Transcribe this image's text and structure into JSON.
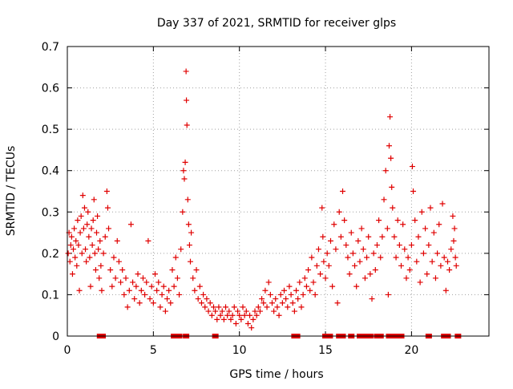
{
  "chart_data": {
    "type": "scatter",
    "title": "Day 337 of 2021, SRMTID for receiver glps",
    "xlabel": "GPS time / hours",
    "ylabel": "SRMTID / TECUs",
    "xlim": [
      0,
      24.5
    ],
    "ylim": [
      0,
      0.7
    ],
    "xticks": [
      0,
      5,
      10,
      15,
      20
    ],
    "xtick_labels": [
      "0",
      "5",
      "10",
      "15",
      "20"
    ],
    "yticks": [
      0,
      0.1,
      0.2,
      0.3,
      0.4,
      0.5,
      0.6,
      0.7
    ],
    "ytick_labels": [
      "0",
      "0.1",
      "0.2",
      "0.3",
      "0.4",
      "0.5",
      "0.6",
      "0.7"
    ],
    "grid": true,
    "marker": "+",
    "color": "#e00000",
    "series": [
      {
        "name": "SRMTID",
        "points": [
          [
            0.05,
            0.2
          ],
          [
            0.1,
            0.25
          ],
          [
            0.15,
            0.18
          ],
          [
            0.2,
            0.22
          ],
          [
            0.25,
            0.24
          ],
          [
            0.3,
            0.15
          ],
          [
            0.35,
            0.21
          ],
          [
            0.4,
            0.26
          ],
          [
            0.45,
            0.19
          ],
          [
            0.5,
            0.23
          ],
          [
            0.55,
            0.17
          ],
          [
            0.6,
            0.28
          ],
          [
            0.65,
            0.22
          ],
          [
            0.7,
            0.11
          ],
          [
            0.75,
            0.25
          ],
          [
            0.8,
            0.29
          ],
          [
            0.85,
            0.2
          ],
          [
            0.9,
            0.34
          ],
          [
            0.95,
            0.26
          ],
          [
            1.0,
            0.31
          ],
          [
            1.05,
            0.21
          ],
          [
            1.1,
            0.18
          ],
          [
            1.15,
            0.27
          ],
          [
            1.2,
            0.3
          ],
          [
            1.25,
            0.24
          ],
          [
            1.3,
            0.19
          ],
          [
            1.35,
            0.12
          ],
          [
            1.4,
            0.26
          ],
          [
            1.45,
            0.22
          ],
          [
            1.5,
            0.28
          ],
          [
            1.55,
            0.33
          ],
          [
            1.6,
            0.2
          ],
          [
            1.65,
            0.16
          ],
          [
            1.7,
            0.25
          ],
          [
            1.75,
            0.29
          ],
          [
            1.8,
            0.21
          ],
          [
            1.85,
            0.14
          ],
          [
            1.9,
            0.23
          ],
          [
            1.95,
            0.17
          ],
          [
            2.0,
            0.11
          ],
          [
            2.1,
            0.2
          ],
          [
            2.2,
            0.24
          ],
          [
            2.3,
            0.35
          ],
          [
            2.35,
            0.31
          ],
          [
            2.4,
            0.26
          ],
          [
            2.5,
            0.16
          ],
          [
            2.6,
            0.12
          ],
          [
            2.7,
            0.19
          ],
          [
            2.8,
            0.14
          ],
          [
            2.9,
            0.23
          ],
          [
            3.0,
            0.18
          ],
          [
            3.1,
            0.13
          ],
          [
            3.2,
            0.16
          ],
          [
            3.3,
            0.1
          ],
          [
            3.4,
            0.14
          ],
          [
            3.5,
            0.07
          ],
          [
            3.6,
            0.11
          ],
          [
            3.7,
            0.27
          ],
          [
            3.8,
            0.13
          ],
          [
            3.9,
            0.09
          ],
          [
            4.0,
            0.12
          ],
          [
            4.1,
            0.15
          ],
          [
            4.2,
            0.08
          ],
          [
            4.3,
            0.11
          ],
          [
            4.4,
            0.14
          ],
          [
            4.5,
            0.1
          ],
          [
            4.6,
            0.13
          ],
          [
            4.7,
            0.23
          ],
          [
            4.8,
            0.09
          ],
          [
            4.9,
            0.12
          ],
          [
            5.0,
            0.08
          ],
          [
            5.1,
            0.15
          ],
          [
            5.2,
            0.11
          ],
          [
            5.3,
            0.13
          ],
          [
            5.4,
            0.07
          ],
          [
            5.5,
            0.1
          ],
          [
            5.6,
            0.12
          ],
          [
            5.7,
            0.06
          ],
          [
            5.8,
            0.09
          ],
          [
            5.9,
            0.11
          ],
          [
            6.0,
            0.08
          ],
          [
            6.1,
            0.16
          ],
          [
            6.2,
            0.12
          ],
          [
            6.3,
            0.19
          ],
          [
            6.4,
            0.14
          ],
          [
            6.5,
            0.1
          ],
          [
            6.6,
            0.21
          ],
          [
            6.7,
            0.3
          ],
          [
            6.75,
            0.4
          ],
          [
            6.8,
            0.38
          ],
          [
            6.85,
            0.42
          ],
          [
            6.9,
            0.64
          ],
          [
            6.92,
            0.57
          ],
          [
            6.95,
            0.51
          ],
          [
            7.0,
            0.33
          ],
          [
            7.05,
            0.27
          ],
          [
            7.1,
            0.22
          ],
          [
            7.15,
            0.18
          ],
          [
            7.2,
            0.25
          ],
          [
            7.3,
            0.14
          ],
          [
            7.4,
            0.11
          ],
          [
            7.5,
            0.16
          ],
          [
            7.6,
            0.09
          ],
          [
            7.7,
            0.12
          ],
          [
            7.8,
            0.08
          ],
          [
            7.9,
            0.1
          ],
          [
            8.0,
            0.07
          ],
          [
            8.1,
            0.09
          ],
          [
            8.2,
            0.06
          ],
          [
            8.3,
            0.08
          ],
          [
            8.4,
            0.05
          ],
          [
            8.5,
            0.07
          ],
          [
            8.6,
            0.06
          ],
          [
            8.7,
            0.04
          ],
          [
            8.8,
            0.07
          ],
          [
            8.9,
            0.05
          ],
          [
            9.0,
            0.06
          ],
          [
            9.1,
            0.04
          ],
          [
            9.2,
            0.07
          ],
          [
            9.3,
            0.05
          ],
          [
            9.4,
            0.06
          ],
          [
            9.5,
            0.04
          ],
          [
            9.6,
            0.05
          ],
          [
            9.7,
            0.07
          ],
          [
            9.8,
            0.03
          ],
          [
            9.9,
            0.06
          ],
          [
            10.0,
            0.05
          ],
          [
            10.1,
            0.04
          ],
          [
            10.2,
            0.07
          ],
          [
            10.3,
            0.05
          ],
          [
            10.4,
            0.06
          ],
          [
            10.5,
            0.03
          ],
          [
            10.6,
            0.05
          ],
          [
            10.7,
            0.02
          ],
          [
            10.8,
            0.04
          ],
          [
            10.9,
            0.06
          ],
          [
            11.0,
            0.05
          ],
          [
            11.1,
            0.07
          ],
          [
            11.2,
            0.06
          ],
          [
            11.3,
            0.09
          ],
          [
            11.4,
            0.08
          ],
          [
            11.5,
            0.11
          ],
          [
            11.6,
            0.07
          ],
          [
            11.7,
            0.13
          ],
          [
            11.8,
            0.1
          ],
          [
            11.9,
            0.08
          ],
          [
            12.0,
            0.06
          ],
          [
            12.1,
            0.09
          ],
          [
            12.2,
            0.07
          ],
          [
            12.3,
            0.05
          ],
          [
            12.4,
            0.1
          ],
          [
            12.5,
            0.08
          ],
          [
            12.6,
            0.11
          ],
          [
            12.7,
            0.09
          ],
          [
            12.8,
            0.07
          ],
          [
            12.9,
            0.12
          ],
          [
            13.0,
            0.1
          ],
          [
            13.1,
            0.08
          ],
          [
            13.2,
            0.06
          ],
          [
            13.3,
            0.11
          ],
          [
            13.4,
            0.09
          ],
          [
            13.5,
            0.13
          ],
          [
            13.6,
            0.07
          ],
          [
            13.7,
            0.1
          ],
          [
            13.8,
            0.14
          ],
          [
            13.9,
            0.12
          ],
          [
            14.0,
            0.16
          ],
          [
            14.1,
            0.11
          ],
          [
            14.2,
            0.19
          ],
          [
            14.3,
            0.13
          ],
          [
            14.4,
            0.1
          ],
          [
            14.5,
            0.17
          ],
          [
            14.6,
            0.21
          ],
          [
            14.7,
            0.15
          ],
          [
            14.8,
            0.31
          ],
          [
            14.85,
            0.24
          ],
          [
            14.9,
            0.18
          ],
          [
            15.0,
            0.14
          ],
          [
            15.1,
            0.2
          ],
          [
            15.2,
            0.17
          ],
          [
            15.3,
            0.23
          ],
          [
            15.4,
            0.12
          ],
          [
            15.5,
            0.27
          ],
          [
            15.6,
            0.21
          ],
          [
            15.7,
            0.08
          ],
          [
            15.8,
            0.3
          ],
          [
            15.9,
            0.24
          ],
          [
            16.0,
            0.35
          ],
          [
            16.1,
            0.28
          ],
          [
            16.2,
            0.22
          ],
          [
            16.3,
            0.19
          ],
          [
            16.4,
            0.15
          ],
          [
            16.5,
            0.25
          ],
          [
            16.6,
            0.2
          ],
          [
            16.7,
            0.17
          ],
          [
            16.8,
            0.12
          ],
          [
            16.9,
            0.23
          ],
          [
            17.0,
            0.18
          ],
          [
            17.1,
            0.26
          ],
          [
            17.2,
            0.21
          ],
          [
            17.3,
            0.14
          ],
          [
            17.4,
            0.19
          ],
          [
            17.5,
            0.24
          ],
          [
            17.6,
            0.15
          ],
          [
            17.7,
            0.09
          ],
          [
            17.8,
            0.2
          ],
          [
            17.9,
            0.16
          ],
          [
            18.0,
            0.22
          ],
          [
            18.1,
            0.28
          ],
          [
            18.2,
            0.19
          ],
          [
            18.3,
            0.24
          ],
          [
            18.4,
            0.33
          ],
          [
            18.5,
            0.4
          ],
          [
            18.6,
            0.26
          ],
          [
            18.65,
            0.1
          ],
          [
            18.7,
            0.46
          ],
          [
            18.75,
            0.53
          ],
          [
            18.8,
            0.43
          ],
          [
            18.85,
            0.36
          ],
          [
            18.9,
            0.31
          ],
          [
            19.0,
            0.24
          ],
          [
            19.1,
            0.19
          ],
          [
            19.2,
            0.28
          ],
          [
            19.3,
            0.22
          ],
          [
            19.4,
            0.17
          ],
          [
            19.5,
            0.27
          ],
          [
            19.6,
            0.21
          ],
          [
            19.7,
            0.14
          ],
          [
            19.8,
            0.19
          ],
          [
            19.9,
            0.16
          ],
          [
            20.0,
            0.22
          ],
          [
            20.05,
            0.41
          ],
          [
            20.1,
            0.35
          ],
          [
            20.2,
            0.28
          ],
          [
            20.3,
            0.18
          ],
          [
            20.4,
            0.24
          ],
          [
            20.5,
            0.13
          ],
          [
            20.6,
            0.3
          ],
          [
            20.7,
            0.2
          ],
          [
            20.8,
            0.26
          ],
          [
            20.9,
            0.15
          ],
          [
            21.0,
            0.22
          ],
          [
            21.1,
            0.31
          ],
          [
            21.2,
            0.18
          ],
          [
            21.3,
            0.25
          ],
          [
            21.4,
            0.14
          ],
          [
            21.5,
            0.2
          ],
          [
            21.6,
            0.27
          ],
          [
            21.7,
            0.17
          ],
          [
            21.8,
            0.32
          ],
          [
            21.9,
            0.19
          ],
          [
            22.0,
            0.11
          ],
          [
            22.1,
            0.18
          ],
          [
            22.2,
            0.16
          ],
          [
            22.3,
            0.21
          ],
          [
            22.4,
            0.29
          ],
          [
            22.45,
            0.23
          ],
          [
            22.5,
            0.26
          ],
          [
            22.55,
            0.19
          ],
          [
            22.6,
            0.17
          ]
        ]
      }
    ],
    "zero_markers_x": [
      1.9,
      2.05,
      6.2,
      6.5,
      6.9,
      8.6,
      13.2,
      13.35,
      15.0,
      15.25,
      15.8,
      16.0,
      16.5,
      17.0,
      17.2,
      17.4,
      17.6,
      18.0,
      18.2,
      18.7,
      19.0,
      19.3,
      19.4,
      21.0,
      21.9,
      22.1,
      22.7
    ]
  }
}
